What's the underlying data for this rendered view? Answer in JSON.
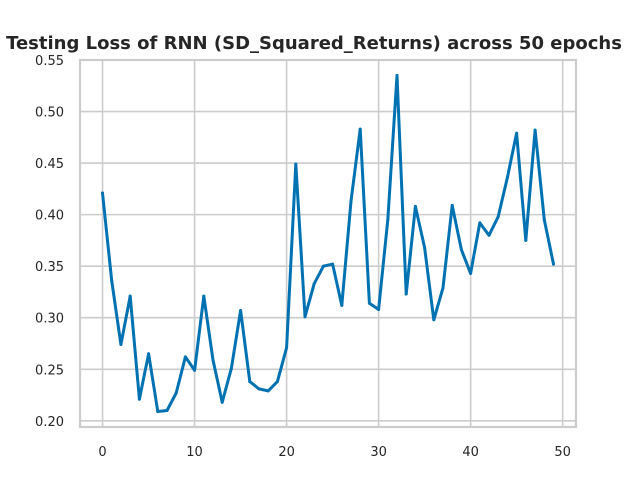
{
  "chart_data": {
    "type": "line",
    "title": "Testing Loss of RNN (SD_Squared_Returns) across 50 epochs",
    "xlabel": "",
    "ylabel": "",
    "xlim": [
      -2.45,
      51.45
    ],
    "ylim": [
      0.194,
      0.55
    ],
    "x_ticks": [
      0,
      10,
      20,
      30,
      40,
      50
    ],
    "y_ticks": [
      0.2,
      0.25,
      0.3,
      0.35,
      0.4,
      0.45,
      0.5,
      0.55
    ],
    "grid": true,
    "colors": {
      "series": "#0072b2",
      "grid": "#cccccc",
      "text": "#262626"
    },
    "series": [
      {
        "name": "",
        "x": [
          0,
          1,
          2,
          3,
          4,
          5,
          6,
          7,
          8,
          9,
          10,
          11,
          12,
          13,
          14,
          15,
          16,
          17,
          18,
          19,
          20,
          21,
          22,
          23,
          24,
          25,
          26,
          27,
          28,
          29,
          30,
          31,
          32,
          33,
          34,
          35,
          36,
          37,
          38,
          39,
          40,
          41,
          42,
          43,
          44,
          45,
          46,
          47,
          48,
          49
        ],
        "values": [
          0.421,
          0.336,
          0.274,
          0.321,
          0.221,
          0.265,
          0.209,
          0.21,
          0.227,
          0.262,
          0.249,
          0.321,
          0.259,
          0.218,
          0.251,
          0.307,
          0.238,
          0.231,
          0.229,
          0.238,
          0.271,
          0.449,
          0.301,
          0.333,
          0.35,
          0.352,
          0.312,
          0.413,
          0.483,
          0.314,
          0.308,
          0.395,
          0.535,
          0.323,
          0.408,
          0.368,
          0.298,
          0.329,
          0.409,
          0.366,
          0.343,
          0.392,
          0.38,
          0.398,
          0.436,
          0.479,
          0.375,
          0.482,
          0.395,
          0.352
        ]
      }
    ]
  }
}
